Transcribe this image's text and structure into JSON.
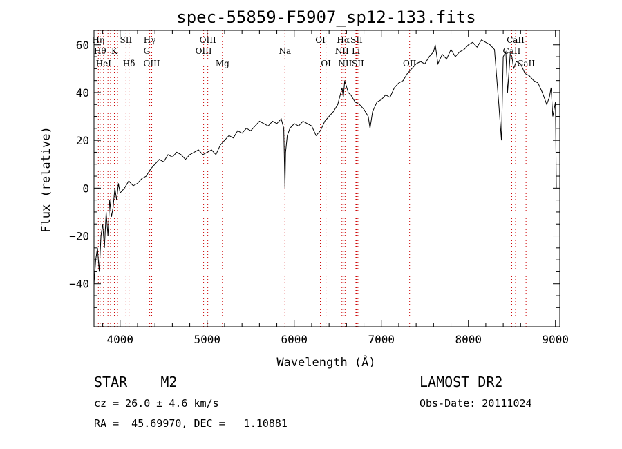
{
  "chart_data": {
    "type": "line",
    "title": "spec-55859-F5907_sp12-133.fits",
    "xlabel": "Wavelength (Å)",
    "ylabel": "Flux (relative)",
    "xlim": [
      3700,
      9050
    ],
    "ylim": [
      -58,
      66
    ],
    "xticks": [
      "4000",
      "5000",
      "6000",
      "7000",
      "8000",
      "9000"
    ],
    "yticks": [
      "−40",
      "−20",
      "0",
      "20",
      "40",
      "60"
    ],
    "series": [
      {
        "x": [
          3700,
          3720,
          3740,
          3760,
          3780,
          3800,
          3820,
          3840,
          3860,
          3880,
          3900,
          3920,
          3940,
          3960,
          3980,
          4000,
          4050,
          4100,
          4150,
          4200,
          4250,
          4300,
          4350,
          4400,
          4450,
          4500,
          4550,
          4600,
          4650,
          4700,
          4750,
          4800,
          4850,
          4900,
          4950,
          5000,
          5050,
          5100,
          5150,
          5200,
          5250,
          5300,
          5350,
          5400,
          5450,
          5500,
          5550,
          5600,
          5650,
          5700,
          5750,
          5800,
          5850,
          5880,
          5893,
          5900,
          5920,
          5950,
          6000,
          6050,
          6100,
          6150,
          6200,
          6250,
          6300,
          6350,
          6400,
          6450,
          6500,
          6550,
          6563,
          6580,
          6620,
          6650,
          6700,
          6750,
          6800,
          6850,
          6870,
          6900,
          6950,
          7000,
          7050,
          7100,
          7150,
          7200,
          7250,
          7300,
          7350,
          7400,
          7450,
          7500,
          7550,
          7600,
          7620,
          7650,
          7700,
          7750,
          7800,
          7850,
          7900,
          7950,
          8000,
          8050,
          8100,
          8150,
          8200,
          8250,
          8300,
          8350,
          8380,
          8400,
          8430,
          8450,
          8480,
          8500,
          8520,
          8550,
          8600,
          8650,
          8700,
          8750,
          8800,
          8850,
          8900,
          8930,
          8950,
          8970,
          9000,
          9010
        ],
        "y": [
          -40,
          -30,
          -25,
          -35,
          -20,
          -15,
          -25,
          -10,
          -20,
          -5,
          -12,
          -8,
          0,
          -5,
          2,
          -2,
          0,
          3,
          1,
          2,
          4,
          5,
          8,
          10,
          12,
          11,
          14,
          13,
          15,
          14,
          12,
          14,
          15,
          16,
          14,
          15,
          16,
          14,
          18,
          20,
          22,
          21,
          24,
          23,
          25,
          24,
          26,
          28,
          27,
          26,
          28,
          27,
          29,
          25,
          0,
          15,
          22,
          25,
          27,
          26,
          28,
          27,
          26,
          22,
          24,
          28,
          30,
          32,
          35,
          42,
          38,
          45,
          40,
          39,
          36,
          35,
          33,
          30,
          25,
          32,
          36,
          37,
          39,
          38,
          42,
          44,
          45,
          48,
          50,
          52,
          53,
          52,
          55,
          57,
          60,
          52,
          56,
          54,
          58,
          55,
          57,
          58,
          60,
          61,
          59,
          62,
          61,
          60,
          58,
          35,
          20,
          55,
          57,
          40,
          56,
          55,
          50,
          53,
          52,
          48,
          47,
          45,
          44,
          40,
          35,
          38,
          42,
          30,
          36,
          0
        ]
      }
    ],
    "lines": [
      {
        "w": 3750,
        "label": "Hη",
        "row": 0
      },
      {
        "w": 3770,
        "label": "Hθ",
        "row": 1
      },
      {
        "w": 3810,
        "label": "HeI",
        "row": 2
      },
      {
        "w": 3860,
        "label": ""
      },
      {
        "w": 3890,
        "label": ""
      },
      {
        "w": 3934,
        "label": "K",
        "row": 1
      },
      {
        "w": 3970,
        "label": ""
      },
      {
        "w": 4068,
        "label": "SII",
        "row": 0
      },
      {
        "w": 4102,
        "label": "Hδ",
        "row": 2
      },
      {
        "w": 4307,
        "label": "G",
        "row": 1
      },
      {
        "w": 4340,
        "label": "Hγ",
        "row": 0
      },
      {
        "w": 4363,
        "label": "OIII",
        "row": 2
      },
      {
        "w": 4959,
        "label": "OIII",
        "row": 1
      },
      {
        "w": 5007,
        "label": "OIII",
        "row": 0
      },
      {
        "w": 5175,
        "label": "Mg",
        "row": 2
      },
      {
        "w": 5893,
        "label": "Na",
        "row": 1
      },
      {
        "w": 6300,
        "label": "OI",
        "row": 0
      },
      {
        "w": 6364,
        "label": "OI",
        "row": 2
      },
      {
        "w": 6548,
        "label": "NII",
        "row": 1
      },
      {
        "w": 6563,
        "label": "Hα",
        "row": 0
      },
      {
        "w": 6584,
        "label": "NII",
        "row": 2
      },
      {
        "w": 6708,
        "label": "Li",
        "row": 1
      },
      {
        "w": 6716,
        "label": "SII",
        "row": 0
      },
      {
        "w": 6731,
        "label": "SII",
        "row": 2
      },
      {
        "w": 7325,
        "label": "OII",
        "row": 2
      },
      {
        "w": 8498,
        "label": "CaII",
        "row": 1
      },
      {
        "w": 8542,
        "label": "CaII",
        "row": 0
      },
      {
        "w": 8662,
        "label": "CaII",
        "row": 2
      }
    ],
    "line_color": "#cc0000"
  },
  "info": {
    "object": "STAR    M2",
    "survey": "LAMOST DR2",
    "cz": "cz = 26.0 ± 4.6 km/s",
    "obsdate": "Obs-Date: 20111024",
    "coords": "RA =  45.69970, DEC =   1.10881"
  }
}
